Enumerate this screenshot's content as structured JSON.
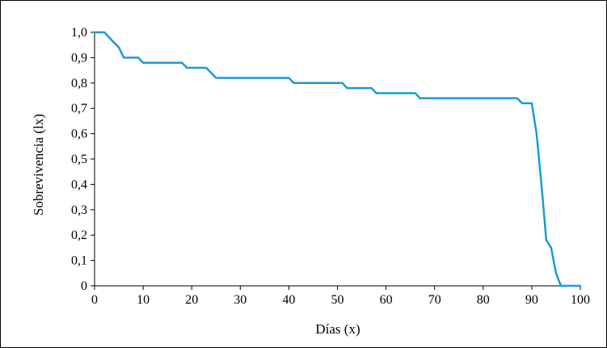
{
  "chart_data": {
    "type": "line",
    "xlabel": "Días (x)",
    "ylabel": "Sobrevivencia (lx)",
    "xlim": [
      0,
      100
    ],
    "ylim": [
      0,
      1
    ],
    "xticks": [
      "0",
      "10",
      "20",
      "30",
      "40",
      "50",
      "60",
      "70",
      "80",
      "90",
      "100"
    ],
    "yticks": [
      "0",
      "0,1",
      "0,2",
      "0,3",
      "0,4",
      "0,5",
      "0,6",
      "0,7",
      "0,8",
      "0,9",
      "1,0"
    ],
    "grid": false,
    "line_color": "#1a9bd7",
    "series": [
      {
        "x": [
          0,
          2,
          3,
          4,
          5,
          6,
          9,
          10,
          18,
          19,
          23,
          25,
          40,
          41,
          51,
          52,
          57,
          58,
          66,
          67,
          87,
          88,
          90,
          91,
          92,
          93,
          94,
          95,
          96,
          100
        ],
        "y": [
          1.0,
          1.0,
          0.98,
          0.96,
          0.94,
          0.9,
          0.9,
          0.88,
          0.88,
          0.86,
          0.86,
          0.82,
          0.82,
          0.8,
          0.8,
          0.78,
          0.78,
          0.76,
          0.76,
          0.74,
          0.74,
          0.72,
          0.72,
          0.6,
          0.4,
          0.18,
          0.15,
          0.05,
          0.0,
          0.0
        ]
      }
    ]
  }
}
